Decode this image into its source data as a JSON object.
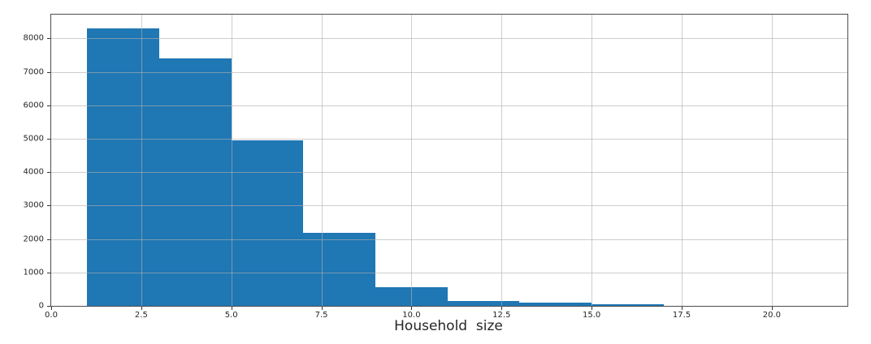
{
  "figure": {
    "background": "#ffffff",
    "bar_color": "#1f77b4",
    "grid_color_rgba": "rgba(176,176,176,0.62)",
    "spine_color": "#4d4d4d",
    "tick_text_color": "#262626"
  },
  "chart_data": {
    "type": "bar",
    "subtype": "histogram",
    "title": "",
    "xlabel": "Household  size",
    "ylabel": "",
    "bin_edges": [
      1,
      3,
      5,
      7,
      9,
      11,
      13,
      15,
      17
    ],
    "counts": [
      8300,
      7410,
      4950,
      2180,
      560,
      150,
      90,
      40
    ],
    "xlim": [
      0,
      22.1
    ],
    "ylim": [
      0,
      8715
    ],
    "x_ticks": [
      0.0,
      2.5,
      5.0,
      7.5,
      10.0,
      12.5,
      15.0,
      17.5,
      20.0
    ],
    "x_tick_labels": [
      "0.0",
      "2.5",
      "5.0",
      "7.5",
      "10.0",
      "12.5",
      "15.0",
      "17.5",
      "20.0"
    ],
    "y_ticks": [
      0,
      1000,
      2000,
      3000,
      4000,
      5000,
      6000,
      7000,
      8000
    ],
    "y_tick_labels": [
      "0",
      "1000",
      "2000",
      "3000",
      "4000",
      "5000",
      "6000",
      "7000",
      "8000"
    ],
    "grid": true,
    "grid_above_bars": true,
    "legend": null
  }
}
